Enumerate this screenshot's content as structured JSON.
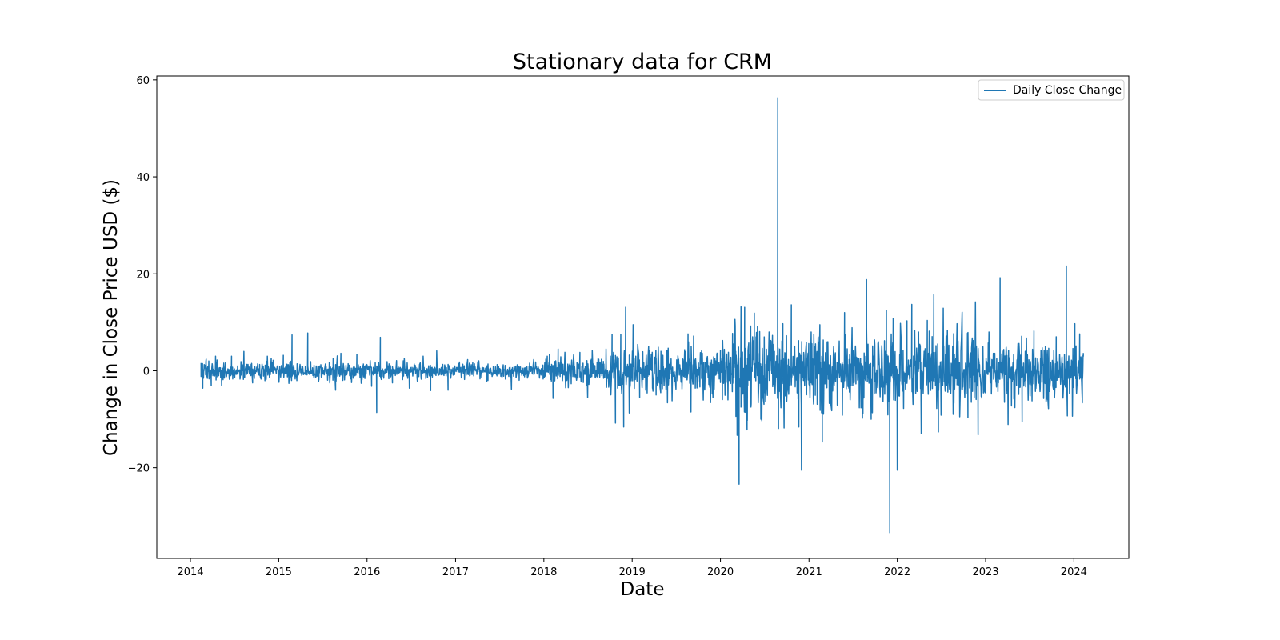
{
  "chart_data": {
    "type": "line",
    "title": "Stationary data for CRM",
    "xlabel": "Date",
    "ylabel": "Change in Close Price USD ($)",
    "x_range": [
      "2013-08-15",
      "2024-08-15"
    ],
    "x_ticks": [
      "2014",
      "2015",
      "2016",
      "2017",
      "2018",
      "2019",
      "2020",
      "2021",
      "2022",
      "2023",
      "2024"
    ],
    "ylim": [
      -38.7,
      60.8
    ],
    "y_ticks": [
      -20,
      0,
      20,
      40,
      60
    ],
    "y_tick_labels": [
      "−20",
      "0",
      "20",
      "40",
      "60"
    ],
    "grid": false,
    "legend_position": "top-right",
    "series": [
      {
        "name": "Daily Close Change",
        "color": "#1f77b4",
        "x_start": "2014-02-14",
        "x_end": "2024-02-09",
        "points": [
          [
            "2014-02-14",
            1.6
          ],
          [
            "2014-02-21",
            -3.6
          ],
          [
            "2014-03-07",
            2.4
          ],
          [
            "2014-03-28",
            -3.1
          ],
          [
            "2014-04-15",
            3.0
          ],
          [
            "2014-05-10",
            -3.0
          ],
          [
            "2014-06-20",
            3.0
          ],
          [
            "2014-08-10",
            4.0
          ],
          [
            "2014-09-15",
            -2.5
          ],
          [
            "2014-11-15",
            3.0
          ],
          [
            "2015-01-20",
            3.2
          ],
          [
            "2015-02-25",
            7.4
          ],
          [
            "2015-03-10",
            -1.7
          ],
          [
            "2015-05-01",
            7.8
          ],
          [
            "2015-06-15",
            -2.2
          ],
          [
            "2015-08-24",
            -4.0
          ],
          [
            "2015-09-15",
            3.6
          ],
          [
            "2015-11-20",
            3.4
          ],
          [
            "2016-01-20",
            -3.2
          ],
          [
            "2016-02-10",
            -8.6
          ],
          [
            "2016-02-25",
            6.9
          ],
          [
            "2016-04-15",
            -2.5
          ],
          [
            "2016-06-24",
            -3.6
          ],
          [
            "2016-08-20",
            3.0
          ],
          [
            "2016-09-20",
            -4.1
          ],
          [
            "2016-10-15",
            4.1
          ],
          [
            "2016-12-01",
            -4.0
          ],
          [
            "2017-02-20",
            2.3
          ],
          [
            "2017-05-15",
            -2.0
          ],
          [
            "2017-08-20",
            -3.8
          ],
          [
            "2017-11-20",
            2.3
          ],
          [
            "2018-01-15",
            3.0
          ],
          [
            "2018-02-08",
            -5.7
          ],
          [
            "2018-03-01",
            4.5
          ],
          [
            "2018-04-01",
            -3.5
          ],
          [
            "2018-05-30",
            3.8
          ],
          [
            "2018-07-01",
            -5.5
          ],
          [
            "2018-09-15",
            4.5
          ],
          [
            "2018-10-10",
            7.5
          ],
          [
            "2018-10-24",
            -10.8
          ],
          [
            "2018-11-15",
            7.5
          ],
          [
            "2018-11-27",
            -11.6
          ],
          [
            "2018-12-05",
            13.1
          ],
          [
            "2018-12-20",
            -8.7
          ],
          [
            "2019-01-05",
            9.5
          ],
          [
            "2019-02-01",
            -5.5
          ],
          [
            "2019-03-10",
            5.0
          ],
          [
            "2019-04-10",
            -5.0
          ],
          [
            "2019-05-25",
            4.2
          ],
          [
            "2019-06-15",
            -6.2
          ],
          [
            "2019-08-20",
            7.6
          ],
          [
            "2019-09-01",
            -8.5
          ],
          [
            "2019-10-15",
            4.1
          ],
          [
            "2019-12-01",
            -5.5
          ],
          [
            "2020-01-01",
            4.2
          ],
          [
            "2020-02-01",
            -6.0
          ],
          [
            "2020-02-20",
            7.7
          ],
          [
            "2020-03-01",
            10.6
          ],
          [
            "2020-03-10",
            -13.3
          ],
          [
            "2020-03-18",
            -23.4
          ],
          [
            "2020-03-26",
            13.2
          ],
          [
            "2020-04-10",
            13.1
          ],
          [
            "2020-04-20",
            -12.2
          ],
          [
            "2020-05-20",
            11.9
          ],
          [
            "2020-06-20",
            -10.3
          ],
          [
            "2020-07-20",
            8.0
          ],
          [
            "2020-08-25",
            56.3
          ],
          [
            "2020-08-28",
            -11.9
          ],
          [
            "2020-09-15",
            9.7
          ],
          [
            "2020-09-20",
            -11.8
          ],
          [
            "2020-10-20",
            13.6
          ],
          [
            "2020-11-20",
            -11.6
          ],
          [
            "2020-12-01",
            -20.5
          ],
          [
            "2021-01-10",
            8.0
          ],
          [
            "2021-02-25",
            -14.7
          ],
          [
            "2021-03-20",
            6.0
          ],
          [
            "2021-05-28",
            12.0
          ],
          [
            "2021-06-20",
            -6.0
          ],
          [
            "2021-08-27",
            18.8
          ],
          [
            "2021-09-15",
            -10.0
          ],
          [
            "2021-11-17",
            12.5
          ],
          [
            "2021-12-01",
            -33.4
          ],
          [
            "2021-12-15",
            10.8
          ],
          [
            "2022-01-01",
            -20.5
          ],
          [
            "2022-02-10",
            10.3
          ],
          [
            "2022-03-02",
            13.7
          ],
          [
            "2022-04-10",
            -13.0
          ],
          [
            "2022-05-05",
            10.4
          ],
          [
            "2022-06-01",
            15.7
          ],
          [
            "2022-06-20",
            -12.6
          ],
          [
            "2022-07-10",
            12.9
          ],
          [
            "2022-08-20",
            -9.0
          ],
          [
            "2022-09-05",
            9.7
          ],
          [
            "2022-10-20",
            -9.7
          ],
          [
            "2022-11-20",
            14.2
          ],
          [
            "2022-12-01",
            -13.2
          ],
          [
            "2023-01-15",
            8.0
          ],
          [
            "2023-03-02",
            19.2
          ],
          [
            "2023-03-20",
            -6.5
          ],
          [
            "2023-05-15",
            5.6
          ],
          [
            "2023-06-01",
            -10.5
          ],
          [
            "2023-07-20",
            8.2
          ],
          [
            "2023-09-15",
            -6.0
          ],
          [
            "2023-10-20",
            7.0
          ],
          [
            "2023-12-01",
            21.6
          ],
          [
            "2023-12-05",
            -9.3
          ],
          [
            "2024-01-05",
            9.7
          ],
          [
            "2024-01-25",
            7.6
          ],
          [
            "2024-02-05",
            -6.6
          ],
          [
            "2024-02-09",
            3.0
          ]
        ]
      }
    ]
  }
}
